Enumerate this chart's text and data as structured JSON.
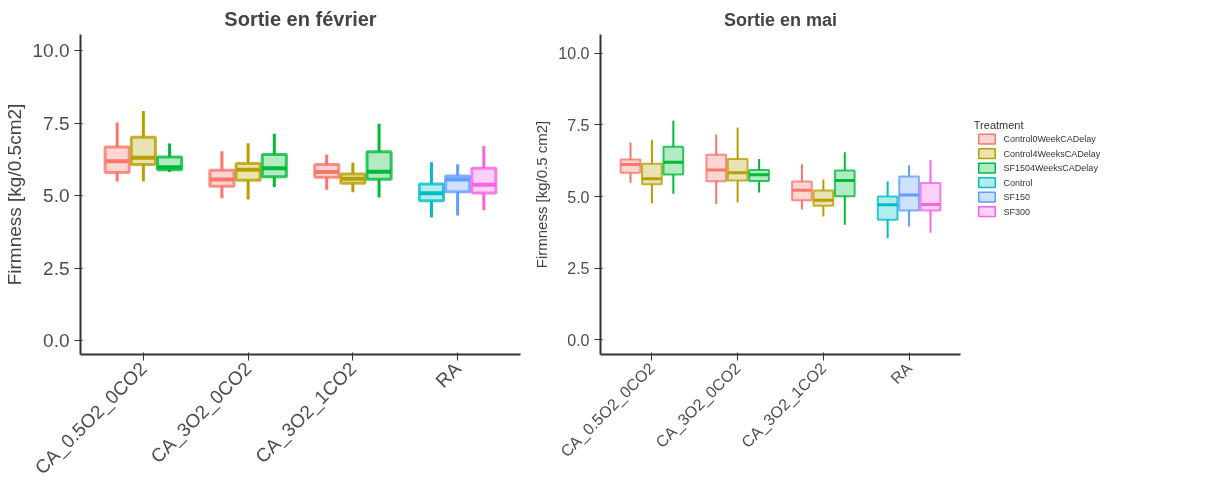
{
  "chart_data": [
    {
      "type": "box",
      "title": "Sortie en février",
      "ylabel": "Firmness [kg/0.5cm2]",
      "categories": [
        "CA_0.5O2_0CO2",
        "CA_3O2_0CO2",
        "CA_3O2_1CO2",
        "RA"
      ],
      "ylim": [
        -0.47,
        10.56
      ],
      "yticks": [
        {
          "value": 0,
          "label": "0.0"
        },
        {
          "value": 2.5,
          "label": "2.5"
        },
        {
          "value": 5,
          "label": "5.0"
        },
        {
          "value": 7.5,
          "label": "7.5"
        },
        {
          "value": 10,
          "label": "10.0"
        }
      ],
      "legend": false,
      "series": [
        {
          "color": "#f8766d",
          "boxes": [
            {
              "low": 5.49,
              "q1": 5.8,
              "median": 6.19,
              "q3": 6.68,
              "high": 7.53
            },
            {
              "low": 4.92,
              "q1": 5.33,
              "median": 5.56,
              "q3": 5.88,
              "high": 6.54
            },
            {
              "low": 5.21,
              "q1": 5.64,
              "median": 5.82,
              "q3": 6.08,
              "high": 6.42
            },
            null
          ]
        },
        {
          "color": "#b79f00",
          "boxes": [
            {
              "low": 5.49,
              "q1": 6.08,
              "median": 6.31,
              "q3": 7.02,
              "high": 7.92
            },
            {
              "low": 4.87,
              "q1": 5.54,
              "median": 5.9,
              "q3": 6.11,
              "high": 6.81
            },
            {
              "low": 5.12,
              "q1": 5.43,
              "median": 5.59,
              "q3": 5.75,
              "high": 6.14
            },
            null
          ]
        },
        {
          "color": "#00ba38",
          "boxes": [
            {
              "low": 5.82,
              "q1": 5.9,
              "median": 5.98,
              "q3": 6.34,
              "high": 6.8
            },
            {
              "low": 5.3,
              "q1": 5.66,
              "median": 5.95,
              "q3": 6.42,
              "high": 7.14
            },
            {
              "low": 4.94,
              "q1": 5.57,
              "median": 5.83,
              "q3": 6.52,
              "high": 7.48
            },
            null
          ]
        },
        {
          "color": "#00bfc4",
          "boxes": [
            null,
            null,
            null,
            {
              "low": 4.25,
              "q1": 4.83,
              "median": 5.09,
              "q3": 5.41,
              "high": 6.16
            }
          ]
        },
        {
          "color": "#619cff",
          "boxes": [
            null,
            null,
            null,
            {
              "low": 4.32,
              "q1": 5.14,
              "median": 5.56,
              "q3": 5.68,
              "high": 6.09
            }
          ]
        },
        {
          "color": "#f564e3",
          "boxes": [
            null,
            null,
            null,
            {
              "low": 4.5,
              "q1": 5.1,
              "median": 5.38,
              "q3": 5.95,
              "high": 6.72
            }
          ]
        }
      ]
    },
    {
      "type": "box",
      "title": "Sortie en mai",
      "ylabel": "Firmness [kg/0.5 cm2]",
      "legend_title": "Treatment",
      "categories": [
        "CA_0.5O2_0CO2",
        "CA_3O2_0CO2",
        "CA_3O2_1CO2",
        "RA"
      ],
      "ylim": [
        -0.52,
        10.66
      ],
      "yticks": [
        {
          "value": 0,
          "label": "0.0"
        },
        {
          "value": 2.5,
          "label": "2.5"
        },
        {
          "value": 5,
          "label": "5.0"
        },
        {
          "value": 7.5,
          "label": "7.5"
        },
        {
          "value": 10,
          "label": "10.0"
        }
      ],
      "legend": "right",
      "series": [
        {
          "name": "Control0WeekCADelay",
          "color": "#f8766d",
          "boxes": [
            {
              "low": 5.48,
              "q1": 5.83,
              "median": 6.12,
              "q3": 6.29,
              "high": 6.89
            },
            {
              "low": 4.74,
              "q1": 5.53,
              "median": 5.93,
              "q3": 6.46,
              "high": 7.17
            },
            {
              "low": 4.55,
              "q1": 4.87,
              "median": 5.22,
              "q3": 5.52,
              "high": 6.13
            },
            null
          ]
        },
        {
          "name": "Control4WeeksCADelay",
          "color": "#b79f00",
          "boxes": [
            {
              "low": 4.76,
              "q1": 5.43,
              "median": 5.62,
              "q3": 6.14,
              "high": 6.98
            },
            {
              "low": 4.79,
              "q1": 5.56,
              "median": 5.83,
              "q3": 6.31,
              "high": 7.41
            },
            {
              "low": 4.3,
              "q1": 4.68,
              "median": 4.87,
              "q3": 5.21,
              "high": 5.59
            },
            null
          ]
        },
        {
          "name": "SF1504WeeksCADelay",
          "color": "#00ba38",
          "boxes": [
            {
              "low": 5.1,
              "q1": 5.77,
              "median": 6.2,
              "q3": 6.74,
              "high": 7.65
            },
            {
              "low": 5.14,
              "q1": 5.54,
              "median": 5.76,
              "q3": 5.93,
              "high": 6.31
            },
            {
              "low": 4.01,
              "q1": 5.01,
              "median": 5.56,
              "q3": 5.91,
              "high": 6.55
            },
            null
          ]
        },
        {
          "name": "Control",
          "color": "#00bfc4",
          "boxes": [
            null,
            null,
            null,
            {
              "low": 3.54,
              "q1": 4.19,
              "median": 4.71,
              "q3": 5.0,
              "high": 5.52
            }
          ]
        },
        {
          "name": "SF150",
          "color": "#619cff",
          "boxes": [
            null,
            null,
            null,
            {
              "low": 3.95,
              "q1": 4.51,
              "median": 5.05,
              "q3": 5.7,
              "high": 6.09
            }
          ]
        },
        {
          "name": "SF300",
          "color": "#f564e3",
          "boxes": [
            null,
            null,
            null,
            {
              "low": 3.73,
              "q1": 4.51,
              "median": 4.72,
              "q3": 5.47,
              "high": 6.27
            }
          ]
        }
      ]
    }
  ]
}
